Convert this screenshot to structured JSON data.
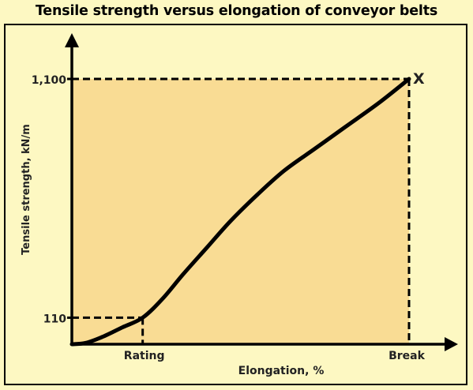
{
  "chart_data": {
    "type": "line",
    "title": "Tensile strength versus elongation of conveyor belts",
    "xlabel": "Elongation, %",
    "ylabel": "Tensile strength, kN/m",
    "x_ticks": [
      "Rating",
      "Break"
    ],
    "y_ticks": [
      "110",
      "1,100"
    ],
    "end_marker": "X",
    "colors": {
      "plot_fill": "#f9dc94",
      "background": "#fdf8c2",
      "line": "#000000"
    },
    "series": [
      {
        "points": [
          {
            "x": 0.0,
            "y": 0
          },
          {
            "x": 0.04,
            "y": 5
          },
          {
            "x": 0.09,
            "y": 30
          },
          {
            "x": 0.15,
            "y": 70
          },
          {
            "x": 0.21,
            "y": 110
          },
          {
            "x": 0.27,
            "y": 190
          },
          {
            "x": 0.33,
            "y": 290
          },
          {
            "x": 0.4,
            "y": 400
          },
          {
            "x": 0.47,
            "y": 510
          },
          {
            "x": 0.55,
            "y": 620
          },
          {
            "x": 0.63,
            "y": 720
          },
          {
            "x": 0.72,
            "y": 810
          },
          {
            "x": 0.81,
            "y": 900
          },
          {
            "x": 0.91,
            "y": 1000
          },
          {
            "x": 1.0,
            "y": 1100
          }
        ]
      }
    ]
  }
}
